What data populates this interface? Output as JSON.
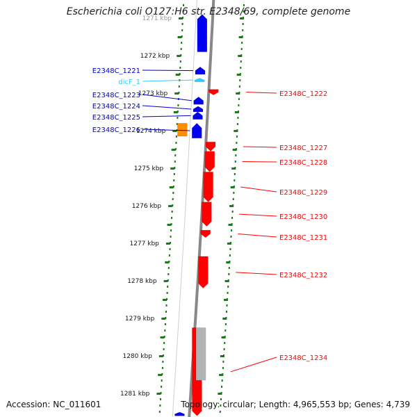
{
  "title": "Escherichia coli O127:H6 str. E2348/69, complete genome",
  "footer": {
    "accession": "Accession: NC_011601",
    "topology": "Topology: circular; Length: 4,965,553 bp; Genes: 4,739"
  },
  "colors": {
    "forward_gene": "#0000ee",
    "reverse_gene": "#ff0000",
    "rna": "#33ccff",
    "orange_feature": "#ff8c00",
    "grey_feature": "#b3b3b3",
    "tick_green": "#1a7a1a",
    "backbone": "#888888"
  },
  "axis": {
    "start_kbp": 1270.9,
    "end_kbp": 1281.6,
    "ticks": [
      {
        "kbp": 1271,
        "label": "1271 kbp"
      },
      {
        "kbp": 1272,
        "label": "1272 kbp"
      },
      {
        "kbp": 1273,
        "label": "1273 kbp"
      },
      {
        "kbp": 1274,
        "label": "1274 kbp"
      },
      {
        "kbp": 1275,
        "label": "1275 kbp"
      },
      {
        "kbp": 1276,
        "label": "1276 kbp"
      },
      {
        "kbp": 1277,
        "label": "1277 kbp"
      },
      {
        "kbp": 1278,
        "label": "1278 kbp"
      },
      {
        "kbp": 1279,
        "label": "1279 kbp"
      },
      {
        "kbp": 1280,
        "label": "1280 kbp"
      },
      {
        "kbp": 1281,
        "label": "1281 kbp"
      }
    ]
  },
  "features": [
    {
      "strand": "+",
      "kind": "gene",
      "start_kbp": 1270.9,
      "end_kbp": 1271.9,
      "label": ""
    },
    {
      "strand": "+",
      "kind": "gene",
      "start_kbp": 1272.3,
      "end_kbp": 1272.5,
      "label": "E2348C_1221"
    },
    {
      "strand": "+",
      "kind": "rna",
      "start_kbp": 1272.6,
      "end_kbp": 1272.7,
      "label": "dicF_1"
    },
    {
      "strand": "+",
      "kind": "gene",
      "start_kbp": 1273.1,
      "end_kbp": 1273.3,
      "label": "E2348C_1223"
    },
    {
      "strand": "+",
      "kind": "gene",
      "start_kbp": 1273.35,
      "end_kbp": 1273.5,
      "label": "E2348C_1224"
    },
    {
      "strand": "+",
      "kind": "gene",
      "start_kbp": 1273.5,
      "end_kbp": 1273.7,
      "label": "E2348C_1225"
    },
    {
      "strand": "+",
      "kind": "gene",
      "start_kbp": 1273.8,
      "end_kbp": 1274.2,
      "label": "E2348C_1226"
    },
    {
      "strand": "-",
      "kind": "gene",
      "start_kbp": 1272.9,
      "end_kbp": 1273.05,
      "label": "E2348C_1222"
    },
    {
      "strand": "-",
      "kind": "gene",
      "start_kbp": 1274.3,
      "end_kbp": 1274.55,
      "label": "E2348C_1227"
    },
    {
      "strand": "-",
      "kind": "gene",
      "start_kbp": 1274.55,
      "end_kbp": 1275.1,
      "label": "E2348C_1228"
    },
    {
      "strand": "-",
      "kind": "gene",
      "start_kbp": 1275.1,
      "end_kbp": 1275.9,
      "label": "E2348C_1229"
    },
    {
      "strand": "-",
      "kind": "gene",
      "start_kbp": 1275.9,
      "end_kbp": 1276.55,
      "label": "E2348C_1230"
    },
    {
      "strand": "-",
      "kind": "gene",
      "start_kbp": 1276.65,
      "end_kbp": 1276.85,
      "label": "E2348C_1231"
    },
    {
      "strand": "-",
      "kind": "gene",
      "start_kbp": 1277.35,
      "end_kbp": 1278.2,
      "label": "E2348C_1232"
    },
    {
      "strand": "-",
      "kind": "gene",
      "start_kbp": 1279.25,
      "end_kbp": 1281.6,
      "label": "E2348C_1234"
    },
    {
      "strand": "-",
      "kind": "other",
      "start_kbp": 1279.25,
      "end_kbp": 1280.65,
      "label": ""
    },
    {
      "strand": "+",
      "kind": "other",
      "start_kbp": 1273.8,
      "end_kbp": 1274.15,
      "label": ""
    },
    {
      "strand": "+",
      "kind": "gene",
      "start_kbp": 1281.5,
      "end_kbp": 1281.6,
      "label": ""
    }
  ]
}
